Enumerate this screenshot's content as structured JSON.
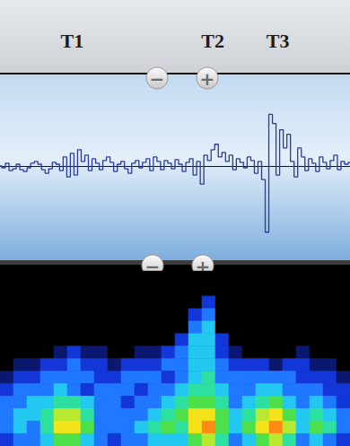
{
  "chart_data": [
    {
      "type": "line",
      "annotations": [
        {
          "text": "T1",
          "x": 20
        },
        {
          "text": "T2",
          "x": 59
        },
        {
          "text": "T3",
          "x": 77
        }
      ],
      "buttons": [
        "−",
        "+"
      ],
      "x": [
        0,
        1,
        2,
        3,
        4,
        5,
        6,
        7,
        8,
        9,
        10,
        11,
        12,
        13,
        14,
        15,
        16,
        17,
        18,
        19,
        20,
        21,
        22,
        23,
        24,
        25,
        26,
        27,
        28,
        29,
        30,
        31,
        32,
        33,
        34,
        35,
        36,
        37,
        38,
        39,
        40,
        41,
        42,
        43,
        44,
        45,
        46,
        47,
        48,
        49,
        50,
        51,
        52,
        53,
        54,
        55,
        56,
        57,
        58,
        59,
        60,
        61,
        62,
        63,
        64,
        65,
        66,
        67,
        68,
        69,
        70,
        71,
        72,
        73,
        74,
        75,
        76,
        77,
        78,
        79,
        80,
        81,
        82,
        83,
        84,
        85,
        86,
        87,
        88,
        89,
        90,
        91,
        92,
        93,
        94,
        95,
        96,
        97
      ],
      "values": [
        0,
        -0.02,
        0.03,
        -0.05,
        -0.03,
        0.02,
        -0.04,
        -0.06,
        -0.02,
        0.03,
        0.05,
        0.02,
        -0.04,
        -0.08,
        -0.03,
        0.04,
        0.02,
        -0.05,
        0.1,
        -0.12,
        0.14,
        -0.1,
        0.18,
        0.05,
        0.12,
        -0.05,
        0.08,
        0.03,
        -0.04,
        0.06,
        0.1,
        0.04,
        -0.06,
        0.02,
        0.05,
        -0.03,
        -0.08,
        0.03,
        0.06,
        -0.02,
        0.04,
        0.08,
        -0.05,
        0.1,
        0.05,
        -0.04,
        0.06,
        0.03,
        -0.03,
        0.07,
        0.02,
        -0.06,
        0.04,
        0.08,
        -0.1,
        0.05,
        -0.2,
        0.12,
        0.06,
        0.18,
        0.24,
        0.1,
        0.15,
        0.05,
        0.12,
        -0.04,
        0.08,
        0.04,
        -0.02,
        0.1,
        0.06,
        -0.08,
        0.05,
        -0.15,
        -0.73,
        0.57,
        0.47,
        -0.1,
        0.4,
        0.2,
        0.35,
        0.05,
        -0.12,
        0.2,
        0.1,
        -0.05,
        0.08,
        0.03,
        -0.06,
        0.1,
        0.04,
        -0.03,
        0.06,
        0.12,
        -0.04,
        0.05,
        0.02,
        0.04
      ],
      "color": "#2b3c9c",
      "line_style": "step",
      "xlim": [
        0,
        97
      ],
      "ylim": [
        -1,
        1
      ],
      "grid": false,
      "tick_labels": false
    },
    {
      "type": "heatmap",
      "buttons": [
        "−",
        "+"
      ],
      "zlim": [
        0,
        10
      ],
      "tick_labels": false,
      "cells": [
        [
          0,
          0,
          0,
          0,
          0,
          0,
          0,
          0,
          0,
          0,
          0,
          0,
          0,
          0,
          0,
          0,
          0,
          0,
          0,
          0,
          0,
          0,
          0,
          0,
          0,
          0
        ],
        [
          0,
          0,
          0,
          0,
          0,
          0,
          0,
          0,
          0,
          0,
          0,
          0,
          0,
          0,
          0,
          0,
          0,
          0,
          0,
          0,
          0,
          0,
          0,
          0,
          0,
          0
        ],
        [
          0,
          0,
          0,
          0,
          0,
          0,
          0,
          0,
          0,
          0,
          0,
          0,
          0,
          0,
          0,
          2,
          0,
          0,
          0,
          0,
          0,
          0,
          0,
          0,
          0,
          0
        ],
        [
          0,
          0,
          0,
          0,
          0,
          0,
          0,
          0,
          0,
          0,
          0,
          0,
          0,
          0,
          2,
          3,
          0,
          0,
          0,
          0,
          0,
          0,
          0,
          0,
          0,
          0
        ],
        [
          0,
          0,
          0,
          0,
          0,
          0,
          0,
          0,
          0,
          0,
          0,
          0,
          0,
          0,
          3,
          4,
          0,
          0,
          0,
          0,
          0,
          0,
          0,
          0,
          0,
          0
        ],
        [
          0,
          0,
          0,
          0,
          0,
          0,
          0,
          0,
          0,
          0,
          0,
          0,
          0,
          2,
          4,
          4,
          2,
          0,
          0,
          0,
          0,
          0,
          0,
          0,
          0,
          0
        ],
        [
          0,
          0,
          0,
          0,
          1,
          2,
          1,
          1,
          0,
          0,
          1,
          1,
          2,
          3,
          4,
          4,
          2,
          1,
          0,
          0,
          0,
          0,
          1,
          0,
          0,
          0
        ],
        [
          0,
          1,
          1,
          2,
          2,
          3,
          2,
          2,
          1,
          2,
          2,
          2,
          3,
          3,
          4,
          4,
          3,
          2,
          2,
          2,
          1,
          2,
          2,
          1,
          1,
          0
        ],
        [
          1,
          2,
          2,
          3,
          3,
          3,
          3,
          2,
          2,
          3,
          3,
          3,
          2,
          3,
          4,
          5,
          3,
          3,
          3,
          3,
          3,
          3,
          2,
          2,
          2,
          1
        ],
        [
          2,
          3,
          3,
          3,
          4,
          3,
          2,
          3,
          3,
          3,
          2,
          3,
          3,
          4,
          5,
          5,
          4,
          3,
          3,
          4,
          4,
          3,
          3,
          3,
          2,
          2
        ],
        [
          3,
          3,
          4,
          4,
          5,
          5,
          4,
          3,
          3,
          2,
          3,
          3,
          4,
          5,
          6,
          6,
          5,
          3,
          4,
          5,
          6,
          4,
          3,
          4,
          3,
          2
        ],
        [
          3,
          4,
          4,
          5,
          7,
          7,
          5,
          3,
          3,
          3,
          3,
          4,
          5,
          6,
          8,
          8,
          6,
          4,
          5,
          7,
          8,
          6,
          4,
          5,
          4,
          3
        ],
        [
          3,
          4,
          3,
          5,
          8,
          8,
          6,
          3,
          3,
          3,
          4,
          5,
          6,
          5,
          8,
          9,
          6,
          4,
          6,
          8,
          9,
          7,
          4,
          6,
          5,
          3
        ],
        [
          2,
          3,
          3,
          4,
          6,
          6,
          4,
          3,
          2,
          3,
          3,
          4,
          4,
          4,
          6,
          7,
          5,
          3,
          4,
          6,
          7,
          5,
          3,
          4,
          3,
          2
        ]
      ]
    }
  ]
}
